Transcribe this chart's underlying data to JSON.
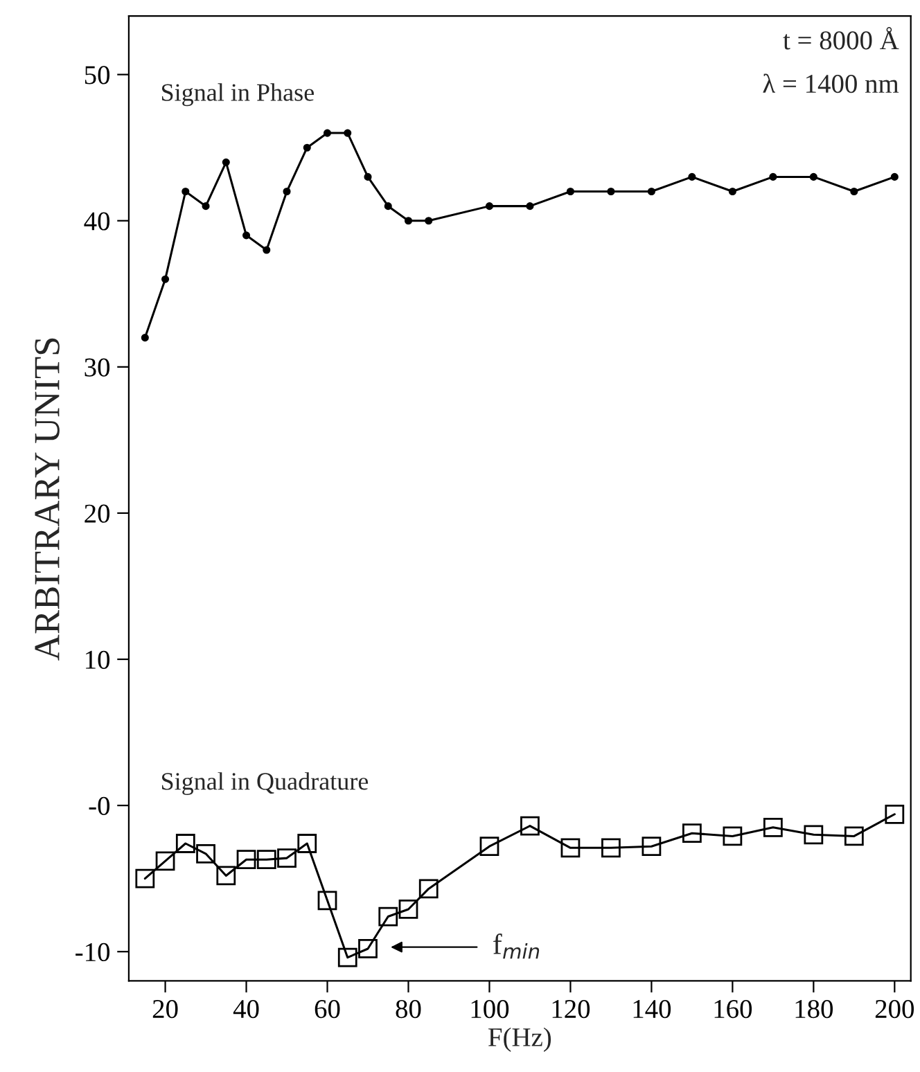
{
  "chart_data": {
    "type": "line",
    "xlabel": "F(Hz)",
    "ylabel": "ARBITRARY UNITS",
    "x": [
      15,
      20,
      25,
      30,
      35,
      40,
      45,
      50,
      55,
      60,
      65,
      70,
      75,
      80,
      85,
      100,
      110,
      120,
      130,
      140,
      150,
      160,
      170,
      180,
      190,
      200
    ],
    "series": [
      {
        "name": "Signal in Phase",
        "color": "#000000",
        "marker": "circle",
        "values": [
          32,
          36,
          42,
          41,
          44,
          39,
          38,
          42,
          45,
          46,
          46,
          43,
          41,
          40,
          40,
          41,
          41,
          42,
          42,
          42,
          43,
          42,
          43,
          43,
          42,
          43
        ]
      },
      {
        "name": "Signal in Quadrature",
        "color": "#000000",
        "marker": "square",
        "values": [
          -5,
          -3.8,
          -2.6,
          -3.3,
          -4.8,
          -3.7,
          -3.7,
          -3.6,
          -2.6,
          -6.5,
          -10.4,
          -9.8,
          -7.6,
          -7.1,
          -5.7,
          -2.8,
          -1.4,
          -2.9,
          -2.9,
          -2.8,
          -1.9,
          -2.1,
          -1.5,
          -2.0,
          -2.1,
          -0.6
        ]
      }
    ],
    "xlim": [
      11,
      204
    ],
    "ylim": [
      -12,
      54
    ],
    "xticks": [
      20,
      40,
      60,
      80,
      100,
      120,
      140,
      160,
      180,
      200
    ],
    "yticks": [
      {
        "value": -10,
        "label": "-10"
      },
      {
        "value": 0,
        "label": "-0"
      },
      10,
      20,
      30,
      40,
      50
    ],
    "annotations": [
      "t = 8000 Å",
      "λ = 1400 nm",
      "f$_{min}$"
    ],
    "grid": false,
    "legend": false,
    "line_style": "solid"
  }
}
